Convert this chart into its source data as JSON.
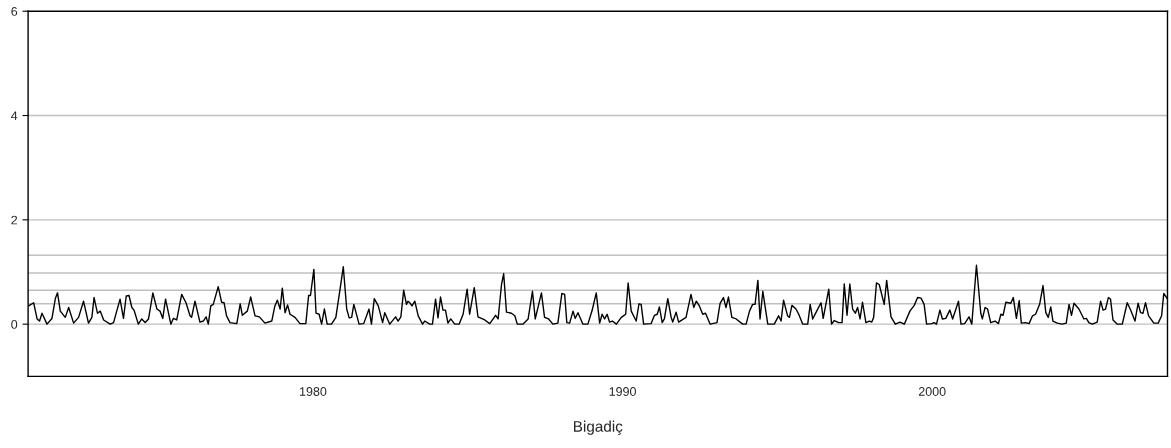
{
  "chart_data": {
    "type": "line",
    "xlabel": "Bigadiç",
    "xlim": [
      1970.8,
      2007.6
    ],
    "xticks": [
      1980,
      1990,
      2000
    ],
    "ylim": [
      -1,
      6
    ],
    "yticks": [
      0,
      2,
      4,
      6
    ],
    "grid": "y",
    "legend": false,
    "ref_lines": [
      {
        "axis": "y",
        "value": 1.32,
        "color": "#c0c0c0"
      },
      {
        "axis": "y",
        "value": 0.98,
        "color": "#c0c0c0"
      },
      {
        "axis": "y",
        "value": 0.65,
        "color": "#c0c0c0"
      },
      {
        "axis": "y",
        "value": 0.39,
        "color": "#c0c0c0"
      }
    ],
    "series": [
      {
        "color": "#000000",
        "x": [
          1970.82,
          1970.98,
          1971.09,
          1971.17,
          1971.25,
          1971.41,
          1971.57,
          1971.68,
          1971.75,
          1971.84,
          1972.0,
          1972.11,
          1972.27,
          1972.43,
          1972.59,
          1972.75,
          1972.86,
          1972.93,
          1973.04,
          1973.13,
          1973.24,
          1973.45,
          1973.56,
          1973.77,
          1973.88,
          1973.97,
          1974.06,
          1974.15,
          1974.22,
          1974.36,
          1974.47,
          1974.58,
          1974.69,
          1974.83,
          1974.96,
          1975.06,
          1975.15,
          1975.24,
          1975.41,
          1975.49,
          1975.6,
          1975.76,
          1975.9,
          1976.03,
          1976.08,
          1976.19,
          1976.35,
          1976.46,
          1976.55,
          1976.62,
          1976.7,
          1976.78,
          1976.94,
          1977.05,
          1977.13,
          1977.21,
          1977.32,
          1977.54,
          1977.65,
          1977.72,
          1977.88,
          1977.99,
          1978.13,
          1978.27,
          1978.45,
          1978.67,
          1978.77,
          1978.85,
          1978.94,
          1979.01,
          1979.1,
          1979.18,
          1979.26,
          1979.42,
          1979.58,
          1979.77,
          1979.86,
          1979.92,
          1980.03,
          1980.1,
          1980.2,
          1980.28,
          1980.37,
          1980.46,
          1980.6,
          1980.74,
          1980.89,
          1980.98,
          1981.09,
          1981.17,
          1981.25,
          1981.32,
          1981.49,
          1981.64,
          1981.81,
          1981.89,
          1981.98,
          1982.11,
          1982.25,
          1982.32,
          1982.48,
          1982.67,
          1982.75,
          1982.84,
          1982.93,
          1983.02,
          1983.07,
          1983.13,
          1983.2,
          1983.29,
          1983.4,
          1983.54,
          1983.61,
          1983.77,
          1983.86,
          1983.96,
          1984.04,
          1984.12,
          1984.2,
          1984.28,
          1984.36,
          1984.45,
          1984.58,
          1984.72,
          1984.85,
          1984.98,
          1985.06,
          1985.21,
          1985.33,
          1985.55,
          1985.71,
          1985.9,
          1985.98,
          1986.09,
          1986.16,
          1986.25,
          1986.41,
          1986.52,
          1986.6,
          1986.78,
          1986.95,
          1987.09,
          1987.18,
          1987.38,
          1987.48,
          1987.61,
          1987.75,
          1987.91,
          1988.04,
          1988.13,
          1988.2,
          1988.29,
          1988.4,
          1988.47,
          1988.56,
          1988.72,
          1988.88,
          1989.02,
          1989.15,
          1989.26,
          1989.34,
          1989.42,
          1989.5,
          1989.58,
          1989.67,
          1989.8,
          1989.96,
          1990.1,
          1990.18,
          1990.28,
          1990.44,
          1990.53,
          1990.6,
          1990.68,
          1990.92,
          1991.03,
          1991.12,
          1991.19,
          1991.28,
          1991.35,
          1991.46,
          1991.57,
          1991.62,
          1991.73,
          1991.81,
          1992.05,
          1992.21,
          1992.3,
          1992.38,
          1992.48,
          1992.59,
          1992.68,
          1992.83,
          1993.05,
          1993.15,
          1993.26,
          1993.34,
          1993.42,
          1993.53,
          1993.67,
          1993.88,
          1993.99,
          1994.1,
          1994.2,
          1994.28,
          1994.37,
          1994.44,
          1994.53,
          1994.69,
          1994.9,
          1995.04,
          1995.12,
          1995.2,
          1995.33,
          1995.39,
          1995.47,
          1995.6,
          1995.69,
          1995.82,
          1995.98,
          1996.06,
          1996.14,
          1996.27,
          1996.41,
          1996.48,
          1996.66,
          1996.75,
          1996.84,
          1996.98,
          1997.09,
          1997.16,
          1997.25,
          1997.34,
          1997.43,
          1997.52,
          1997.59,
          1997.67,
          1997.75,
          1997.86,
          1997.97,
          1998.05,
          1998.11,
          1998.2,
          1998.29,
          1998.45,
          1998.53,
          1998.67,
          1998.81,
          1998.96,
          1999.1,
          1999.28,
          1999.42,
          1999.53,
          1999.64,
          1999.74,
          1999.82,
          1999.99,
          2000.06,
          2000.14,
          2000.25,
          2000.33,
          2000.44,
          2000.57,
          2000.66,
          2000.85,
          2000.93,
          2001.05,
          2001.19,
          2001.28,
          2001.43,
          2001.57,
          2001.62,
          2001.71,
          2001.79,
          2001.89,
          2002.03,
          2002.14,
          2002.22,
          2002.29,
          2002.38,
          2002.54,
          2002.62,
          2002.72,
          2002.81,
          2002.88,
          2003.02,
          2003.13,
          2003.24,
          2003.34,
          2003.47,
          2003.58,
          2003.67,
          2003.75,
          2003.83,
          2003.9,
          2004.04,
          2004.2,
          2004.33,
          2004.42,
          2004.5,
          2004.58,
          2004.74,
          2004.9,
          2004.98,
          2005.06,
          2005.17,
          2005.33,
          2005.44,
          2005.52,
          2005.6,
          2005.69,
          2005.76,
          2005.84,
          2005.98,
          2006.14,
          2006.3,
          2006.41,
          2006.55,
          2006.65,
          2006.73,
          2006.81,
          2006.89,
          2006.99,
          2007.16,
          2007.3,
          2007.41,
          2007.48,
          2007.59
        ],
        "values": [
          0.35,
          0.41,
          0.1,
          0.06,
          0.21,
          0.0,
          0.11,
          0.49,
          0.6,
          0.25,
          0.13,
          0.32,
          0.02,
          0.13,
          0.44,
          0.02,
          0.13,
          0.51,
          0.21,
          0.25,
          0.08,
          0.0,
          0.03,
          0.48,
          0.11,
          0.54,
          0.55,
          0.32,
          0.27,
          0.0,
          0.1,
          0.03,
          0.1,
          0.6,
          0.29,
          0.25,
          0.11,
          0.48,
          0.0,
          0.11,
          0.08,
          0.57,
          0.41,
          0.16,
          0.13,
          0.44,
          0.04,
          0.06,
          0.14,
          0.0,
          0.35,
          0.38,
          0.72,
          0.42,
          0.41,
          0.16,
          0.03,
          0.01,
          0.39,
          0.17,
          0.25,
          0.52,
          0.16,
          0.14,
          0.02,
          0.06,
          0.35,
          0.46,
          0.29,
          0.69,
          0.22,
          0.37,
          0.19,
          0.13,
          0.01,
          0.01,
          0.55,
          0.55,
          1.05,
          0.21,
          0.19,
          0.0,
          0.29,
          0.0,
          0.0,
          0.13,
          0.73,
          1.1,
          0.29,
          0.12,
          0.13,
          0.38,
          0.0,
          0.01,
          0.29,
          0.0,
          0.49,
          0.35,
          0.03,
          0.22,
          0.0,
          0.14,
          0.06,
          0.14,
          0.65,
          0.38,
          0.44,
          0.41,
          0.35,
          0.44,
          0.16,
          0.0,
          0.06,
          0.0,
          0.0,
          0.48,
          0.12,
          0.52,
          0.27,
          0.27,
          0.02,
          0.1,
          0.0,
          0.0,
          0.19,
          0.67,
          0.19,
          0.7,
          0.14,
          0.08,
          0.01,
          0.17,
          0.1,
          0.76,
          0.97,
          0.23,
          0.21,
          0.16,
          0.0,
          0.0,
          0.1,
          0.63,
          0.1,
          0.6,
          0.13,
          0.1,
          0.0,
          0.02,
          0.59,
          0.57,
          0.03,
          0.02,
          0.25,
          0.11,
          0.22,
          0.0,
          0.0,
          0.27,
          0.6,
          0.02,
          0.19,
          0.1,
          0.19,
          0.04,
          0.06,
          0.0,
          0.13,
          0.19,
          0.79,
          0.25,
          0.06,
          0.39,
          0.38,
          0.0,
          0.01,
          0.17,
          0.19,
          0.33,
          0.03,
          0.1,
          0.49,
          0.13,
          0.04,
          0.23,
          0.04,
          0.13,
          0.57,
          0.32,
          0.44,
          0.35,
          0.19,
          0.21,
          0.0,
          0.03,
          0.4,
          0.51,
          0.32,
          0.52,
          0.13,
          0.1,
          0.0,
          0.0,
          0.25,
          0.38,
          0.38,
          0.84,
          0.1,
          0.63,
          0.0,
          0.0,
          0.16,
          0.06,
          0.46,
          0.16,
          0.13,
          0.36,
          0.29,
          0.19,
          0.0,
          0.0,
          0.38,
          0.1,
          0.25,
          0.41,
          0.11,
          0.67,
          0.0,
          0.07,
          0.03,
          0.03,
          0.77,
          0.17,
          0.77,
          0.29,
          0.21,
          0.32,
          0.1,
          0.42,
          0.03,
          0.06,
          0.04,
          0.13,
          0.79,
          0.76,
          0.38,
          0.84,
          0.14,
          0.0,
          0.04,
          0.0,
          0.25,
          0.36,
          0.51,
          0.5,
          0.38,
          0.0,
          0.01,
          0.03,
          0.0,
          0.27,
          0.1,
          0.11,
          0.27,
          0.1,
          0.44,
          0.0,
          0.01,
          0.14,
          0.0,
          1.13,
          0.21,
          0.1,
          0.32,
          0.29,
          0.03,
          0.06,
          0.01,
          0.19,
          0.17,
          0.42,
          0.4,
          0.51,
          0.11,
          0.45,
          0.02,
          0.03,
          0.01,
          0.16,
          0.19,
          0.38,
          0.74,
          0.22,
          0.13,
          0.33,
          0.06,
          0.02,
          0.0,
          0.02,
          0.38,
          0.17,
          0.4,
          0.29,
          0.1,
          0.11,
          0.03,
          0.0,
          0.04,
          0.44,
          0.27,
          0.29,
          0.51,
          0.48,
          0.08,
          0.0,
          0.0,
          0.41,
          0.27,
          0.06,
          0.4,
          0.22,
          0.21,
          0.41,
          0.16,
          0.02,
          0.02,
          0.16,
          0.59,
          0.49
        ]
      }
    ]
  }
}
